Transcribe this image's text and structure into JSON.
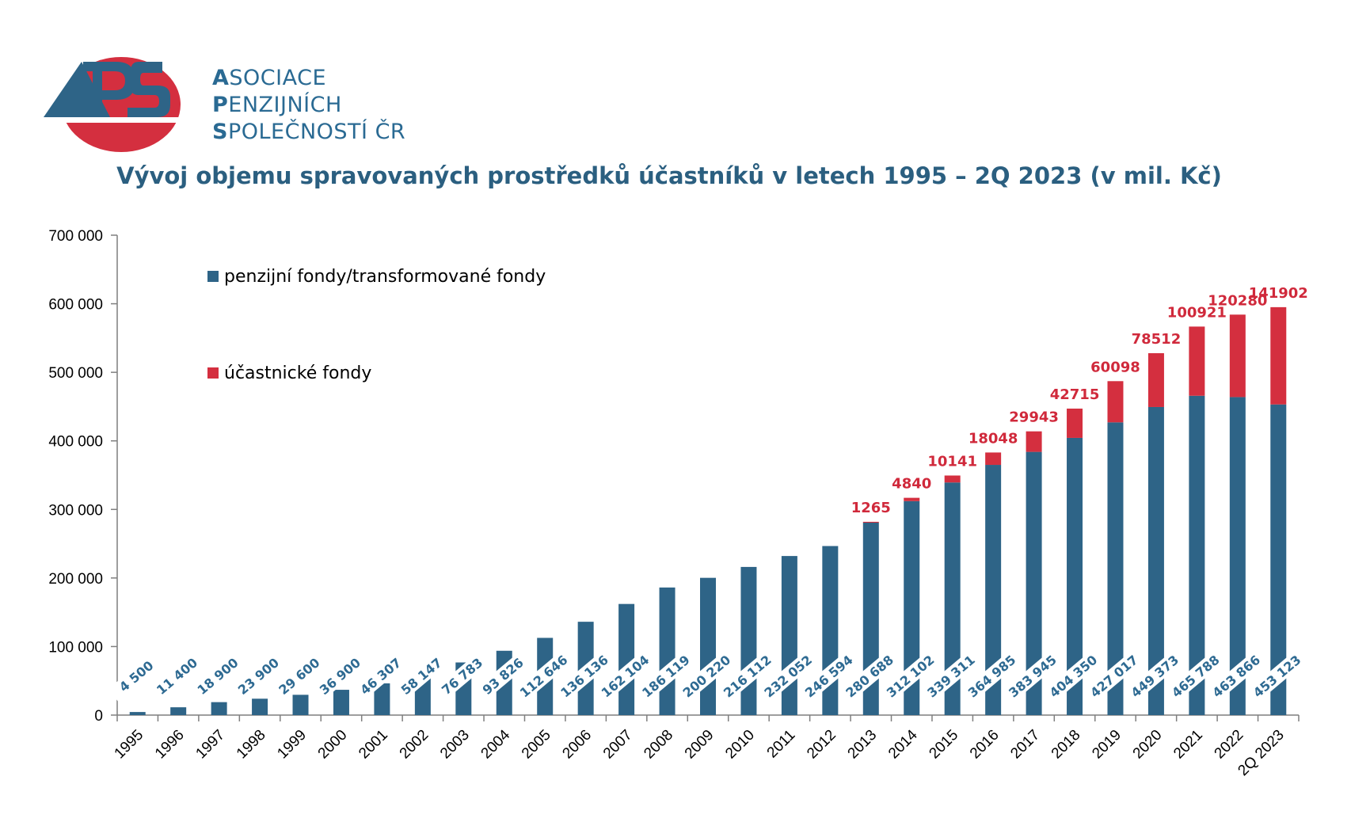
{
  "brand": {
    "line1_cap": "A",
    "line1_rest": "SOCIACE",
    "line2_cap": "P",
    "line2_rest": "ENZIJNÍCH",
    "line3_cap": "S",
    "line3_rest": "POLEČNOSTÍ ČR"
  },
  "colors": {
    "blue": "#2e6487",
    "red": "#d42f3f",
    "brand": "#2a6a93"
  },
  "chart_data": {
    "type": "bar",
    "stacked": true,
    "title": "Vývoj objemu spravovaných prostředků účastníků v letech 1995 – 2Q 2023 (v mil. Kč)",
    "xlabel": "",
    "ylabel": "",
    "ylim": [
      0,
      700000
    ],
    "yticks": [
      0,
      100000,
      200000,
      300000,
      400000,
      500000,
      600000,
      700000
    ],
    "ytick_labels": [
      "0",
      "100 000",
      "200 000",
      "300 000",
      "400 000",
      "500 000",
      "600 000",
      "700 000"
    ],
    "legend_position": "top-left",
    "grid": false,
    "categories": [
      "1995",
      "1996",
      "1997",
      "1998",
      "1999",
      "2000",
      "2001",
      "2002",
      "2003",
      "2004",
      "2005",
      "2006",
      "2007",
      "2008",
      "2009",
      "2010",
      "2011",
      "2012",
      "2013",
      "2014",
      "2015",
      "2016",
      "2017",
      "2018",
      "2019",
      "2020",
      "2021",
      "2022",
      "2Q 2023"
    ],
    "series": [
      {
        "name": "penzijní fondy/transformované fondy",
        "color": "#2e6487",
        "values": [
          4500,
          11400,
          18900,
          23900,
          29600,
          36900,
          46307,
          58147,
          76783,
          93826,
          112646,
          136136,
          162104,
          186119,
          200220,
          216112,
          232052,
          246594,
          280688,
          312102,
          339311,
          364985,
          383945,
          404350,
          427017,
          449373,
          465788,
          463866,
          453123
        ],
        "labels": [
          "4 500",
          "11 400",
          "18 900",
          "23 900",
          "29 600",
          "36 900",
          "46 307",
          "58 147",
          "76 783",
          "93 826",
          "112 646",
          "136 136",
          "162 104",
          "186 119",
          "200 220",
          "216 112",
          "232 052",
          "246 594",
          "280 688",
          "312 102",
          "339 311",
          "364 985",
          "383 945",
          "404 350",
          "427 017",
          "449 373",
          "465 788",
          "463 866",
          "453 123"
        ]
      },
      {
        "name": "účastnické fondy",
        "color": "#d42f3f",
        "values": [
          null,
          null,
          null,
          null,
          null,
          null,
          null,
          null,
          null,
          null,
          null,
          null,
          null,
          null,
          null,
          null,
          null,
          null,
          1265,
          4840,
          10141,
          18048,
          29943,
          42715,
          60098,
          78512,
          100921,
          120280,
          141902
        ],
        "labels": [
          "",
          "",
          "",
          "",
          "",
          "",
          "",
          "",
          "",
          "",
          "",
          "",
          "",
          "",
          "",
          "",
          "",
          "",
          "1265",
          "4840",
          "10141",
          "18048",
          "29943",
          "42715",
          "60098",
          "78512",
          "100921",
          "120280",
          "141902"
        ]
      }
    ]
  }
}
